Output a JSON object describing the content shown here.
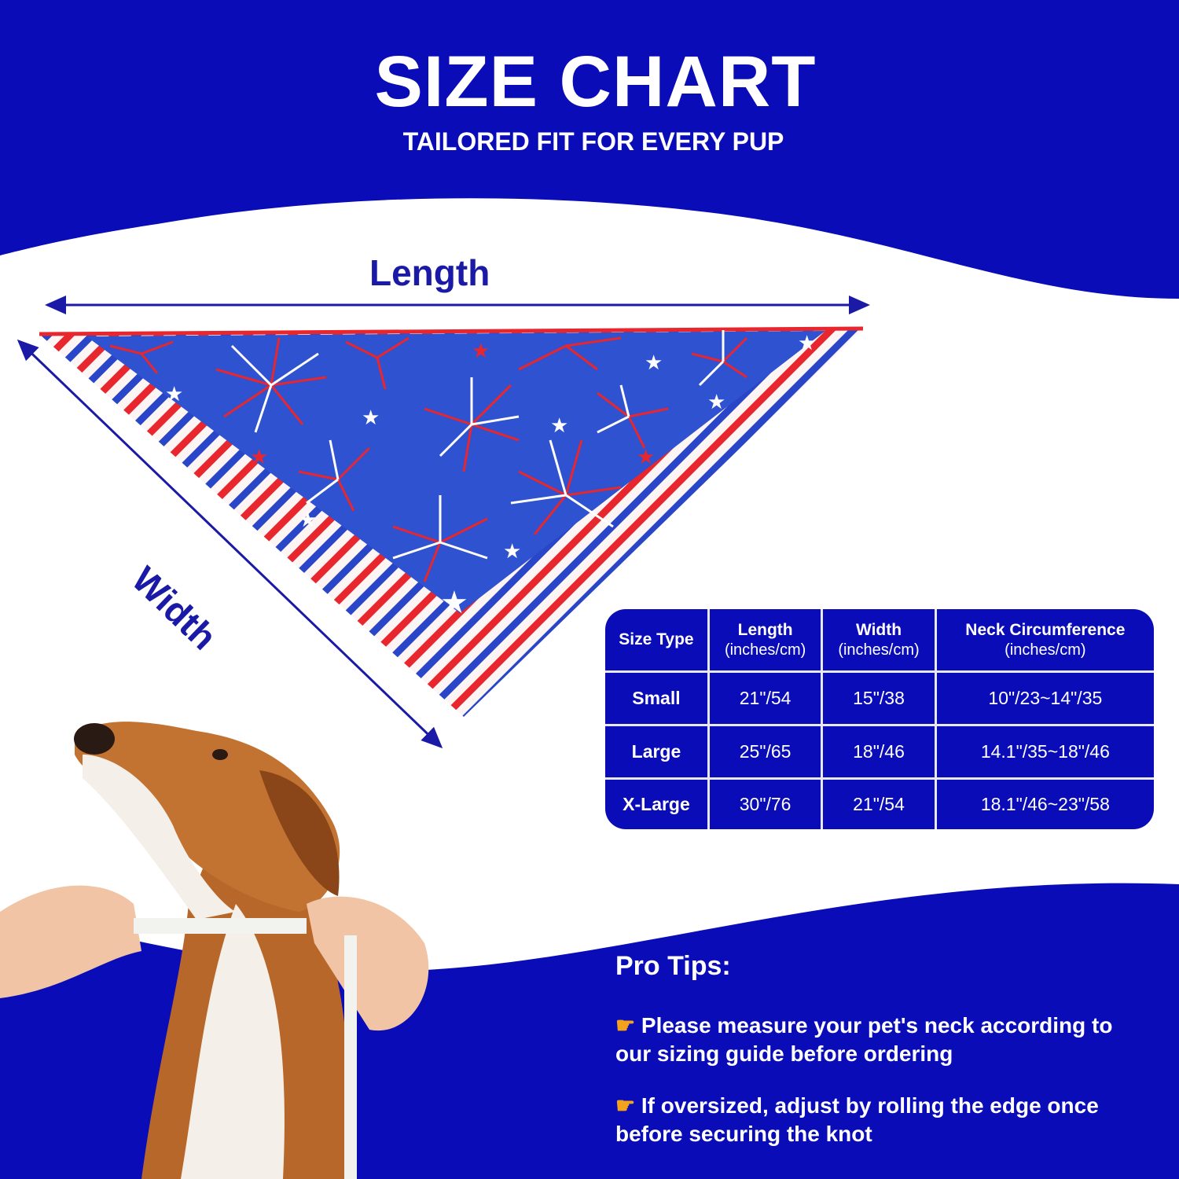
{
  "header": {
    "title": "SIZE CHART",
    "subtitle": "TAILORED FIT FOR EVERY PUP"
  },
  "diagram": {
    "length_label": "Length",
    "width_label": "Width"
  },
  "colors": {
    "brand_blue": "#0a0cb8",
    "label_blue": "#1a1aa6",
    "red": "#e8262e"
  },
  "table": {
    "headers": [
      {
        "title": "Size Type",
        "unit": ""
      },
      {
        "title": "Length",
        "unit": "(inches/cm)"
      },
      {
        "title": "Width",
        "unit": "(inches/cm)"
      },
      {
        "title": "Neck Circumference",
        "unit": "(inches/cm)"
      }
    ],
    "rows": [
      [
        "Small",
        "21\"/54",
        "15\"/38",
        "10\"/23~14\"/35"
      ],
      [
        "Large",
        "25\"/65",
        "18\"/46",
        "14.1\"/35~18\"/46"
      ],
      [
        "X-Large",
        "30\"/76",
        "21\"/54",
        "18.1\"/46~23\"/58"
      ]
    ]
  },
  "tips": {
    "title": "Pro Tips:",
    "icon": "pointing-hand-icon",
    "items": [
      "Please measure your pet's neck according to our sizing guide before ordering",
      "If oversized, adjust by rolling the edge once before securing the knot"
    ]
  }
}
